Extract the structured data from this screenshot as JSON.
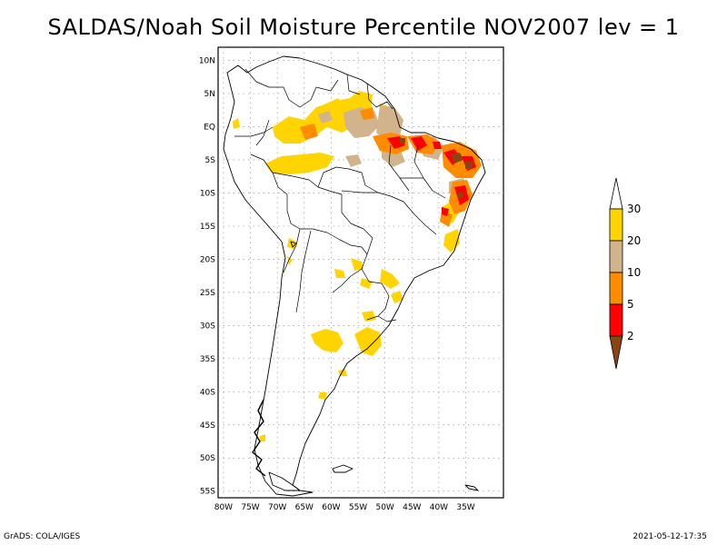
{
  "title": "SALDAS/Noah Soil Moisture Percentile NOV2007 lev = 1",
  "footer": {
    "left": "GrADS: COLA/IGES",
    "right": "2021-05-12-17:35"
  },
  "map": {
    "lon_range": [
      -81,
      -28
    ],
    "lat_range": [
      -56,
      12
    ],
    "lon_ticks": [
      "80W",
      "75W",
      "70W",
      "65W",
      "60W",
      "55W",
      "50W",
      "45W",
      "40W",
      "35W"
    ],
    "lon_tick_values": [
      -80,
      -75,
      -70,
      -65,
      -60,
      -55,
      -50,
      -45,
      -40,
      -35
    ],
    "lat_ticks": [
      "10N",
      "5N",
      "EQ",
      "5S",
      "10S",
      "15S",
      "20S",
      "25S",
      "30S",
      "35S",
      "40S",
      "45S",
      "50S",
      "55S"
    ],
    "lat_tick_values": [
      10,
      5,
      0,
      -5,
      -10,
      -15,
      -20,
      -25,
      -30,
      -35,
      -40,
      -45,
      -50,
      -55
    ],
    "grid": true
  },
  "colorbar": {
    "labels": [
      "30",
      "20",
      "10",
      "5",
      "2"
    ],
    "colors": {
      "above_30": "#ffffff",
      "20_30": "#ffd400",
      "10_20": "#d2b48c",
      "5_10": "#ff8c00",
      "2_5": "#ff0000",
      "below_2": "#8b4513"
    }
  }
}
